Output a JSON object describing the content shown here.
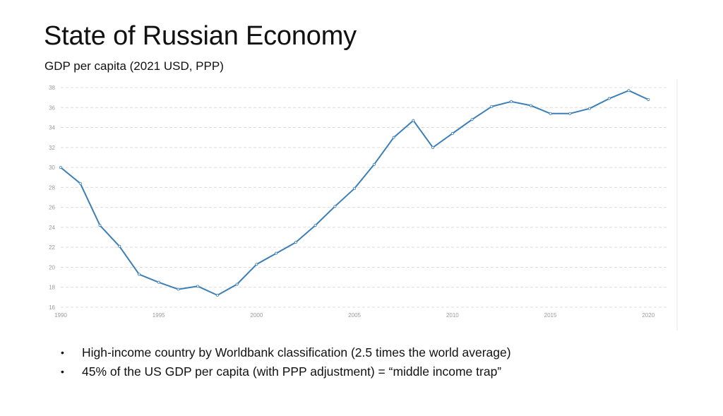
{
  "slide": {
    "title": "State of Russian Economy",
    "subtitle": "GDP per capita (2021 USD, PPP)"
  },
  "chart_data": {
    "type": "line",
    "title": "",
    "xlabel": "",
    "ylabel": "",
    "xlim": [
      1990,
      2021
    ],
    "ylim": [
      16,
      38
    ],
    "grid": true,
    "x_ticks": [
      1990,
      1995,
      2000,
      2005,
      2010,
      2015,
      2020
    ],
    "y_ticks": [
      16,
      18,
      20,
      22,
      24,
      26,
      28,
      30,
      32,
      34,
      36,
      38
    ],
    "line_color": "#3b7fb6",
    "series": [
      {
        "x": [
          1990,
          1991,
          1992,
          1993,
          1994,
          1995,
          1996,
          1997,
          1998,
          1999,
          2000,
          2001,
          2002,
          2003,
          2004,
          2005,
          2006,
          2007,
          2008,
          2009,
          2010,
          2011,
          2012,
          2013,
          2014,
          2015,
          2016,
          2017,
          2018,
          2019,
          2020
        ],
        "values": [
          30.0,
          28.4,
          24.2,
          22.1,
          19.3,
          18.5,
          17.8,
          18.1,
          17.2,
          18.3,
          20.3,
          21.4,
          22.5,
          24.2,
          26.1,
          27.9,
          30.3,
          33.0,
          34.7,
          32.0,
          33.4,
          34.8,
          36.1,
          36.6,
          36.2,
          35.4,
          35.4,
          35.9,
          36.9,
          37.7,
          36.8
        ]
      }
    ]
  },
  "bullets": [
    "High-income country by Worldbank classification (2.5 times the world average)",
    "45% of the US GDP per capita (with PPP adjustment) = “middle income trap”"
  ],
  "bullet_symbol": "•"
}
